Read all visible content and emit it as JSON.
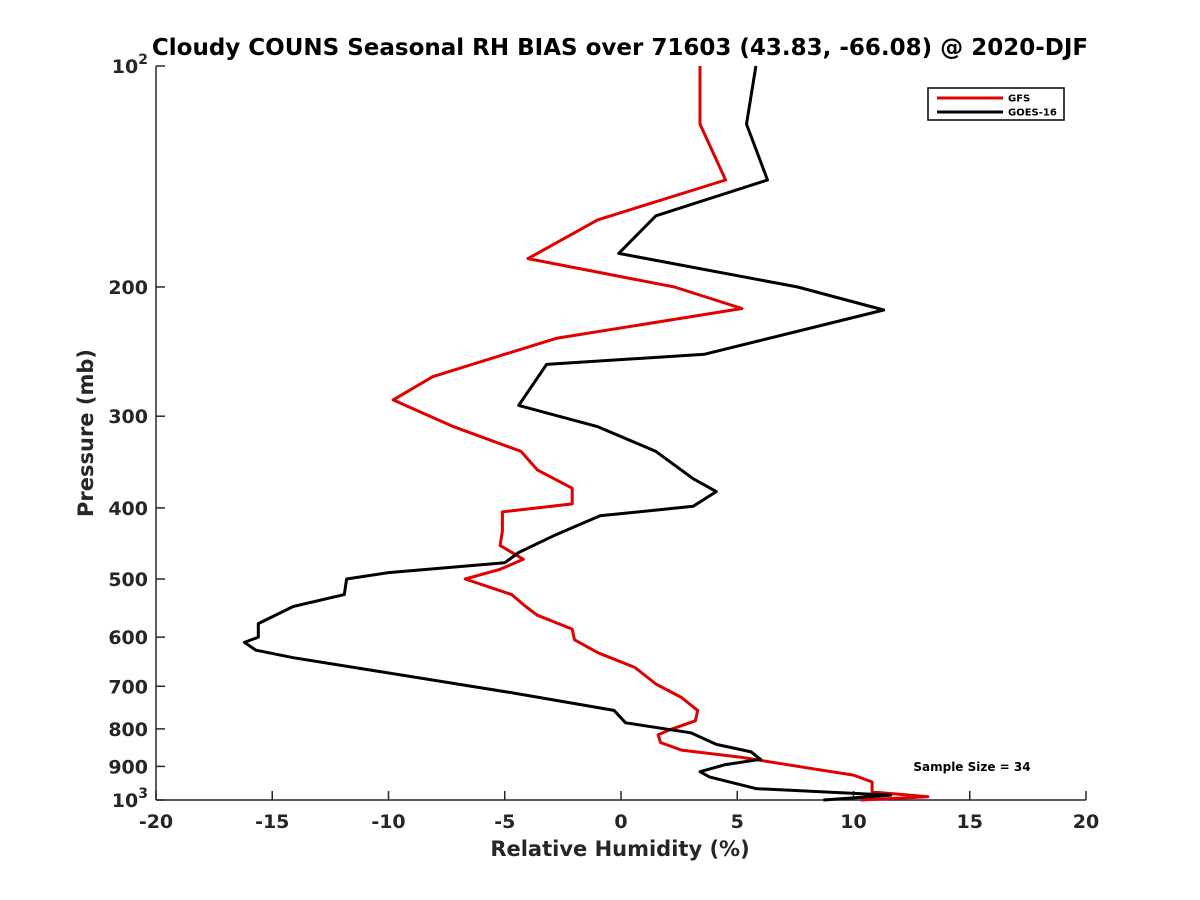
{
  "chart_data": {
    "type": "line",
    "title": "Cloudy COUNS Seasonal RH BIAS over 71603 (43.83, -66.08) @ 2020-DJF",
    "xlabel": "Relative Humidity (%)",
    "ylabel": "Pressure (mb)",
    "xlim": [
      -20,
      20
    ],
    "ylim": [
      100,
      1000
    ],
    "yscale": "log",
    "y_reversed": true,
    "x_ticks": [
      -20,
      -15,
      -10,
      -5,
      0,
      5,
      10,
      15,
      20
    ],
    "x_tick_labels": [
      "-20",
      "-15",
      "-10",
      "-5",
      "0",
      "5",
      "10",
      "15",
      "20"
    ],
    "y_ticks": [
      100,
      200,
      300,
      400,
      500,
      600,
      700,
      800,
      900,
      1000
    ],
    "y_tick_labels": [
      {
        "base": "10",
        "exp": "2"
      },
      {
        "base": "200",
        "exp": ""
      },
      {
        "base": "300",
        "exp": ""
      },
      {
        "base": "400",
        "exp": ""
      },
      {
        "base": "500",
        "exp": ""
      },
      {
        "base": "600",
        "exp": ""
      },
      {
        "base": "700",
        "exp": ""
      },
      {
        "base": "800",
        "exp": ""
      },
      {
        "base": "900",
        "exp": ""
      },
      {
        "base": "10",
        "exp": "3"
      }
    ],
    "grid": false,
    "legend_position": "top-right",
    "annotation": "Sample Size = 34",
    "series": [
      {
        "name": "GFS",
        "color": "#e00000",
        "x": [
          3.4,
          3.4,
          4.5,
          -1.0,
          -4.0,
          2.3,
          5.2,
          -2.8,
          -8.1,
          -9.8,
          -7.2,
          -4.3,
          -3.6,
          -2.1,
          -2.1,
          -5.1,
          -5.1,
          -5.2,
          -4.2,
          -5.2,
          -6.7,
          -4.7,
          -4.1,
          -3.6,
          -2.1,
          -2.0,
          -1.0,
          0.6,
          1.5,
          2.6,
          3.3,
          3.2,
          2.2,
          1.6,
          1.7,
          2.6,
          5.2,
          8.1,
          10.0,
          10.8,
          10.8,
          13.2,
          10.3
        ],
        "y": [
          100,
          120,
          143,
          162,
          183,
          200,
          214,
          235,
          265,
          285,
          310,
          335,
          355,
          376,
          395,
          405,
          430,
          450,
          470,
          485,
          500,
          525,
          545,
          560,
          585,
          605,
          630,
          660,
          695,
          725,
          755,
          780,
          800,
          815,
          835,
          855,
          875,
          905,
          925,
          945,
          975,
          990,
          1000
        ]
      },
      {
        "name": "GOES-16",
        "color": "#000000",
        "x": [
          5.8,
          5.4,
          6.3,
          1.5,
          -0.1,
          7.6,
          11.3,
          3.6,
          -3.2,
          -4.4,
          -1.0,
          1.5,
          3.1,
          4.1,
          3.1,
          -0.9,
          -2.8,
          -4.4,
          -5.0,
          -10.0,
          -11.8,
          -11.9,
          -14.1,
          -15.6,
          -15.6,
          -16.2,
          -15.7,
          -14.1,
          -4.6,
          -0.3,
          0.2,
          3.0,
          4.1,
          5.6,
          6.0,
          4.5,
          3.4,
          3.8,
          5.8,
          11.6,
          8.7
        ],
        "y": [
          100,
          120,
          143,
          160,
          180,
          200,
          215,
          247,
          255,
          290,
          310,
          335,
          365,
          380,
          398,
          410,
          435,
          460,
          475,
          490,
          500,
          525,
          545,
          575,
          600,
          610,
          625,
          640,
          715,
          755,
          785,
          810,
          840,
          860,
          880,
          895,
          915,
          930,
          965,
          985,
          1000
        ]
      }
    ]
  }
}
